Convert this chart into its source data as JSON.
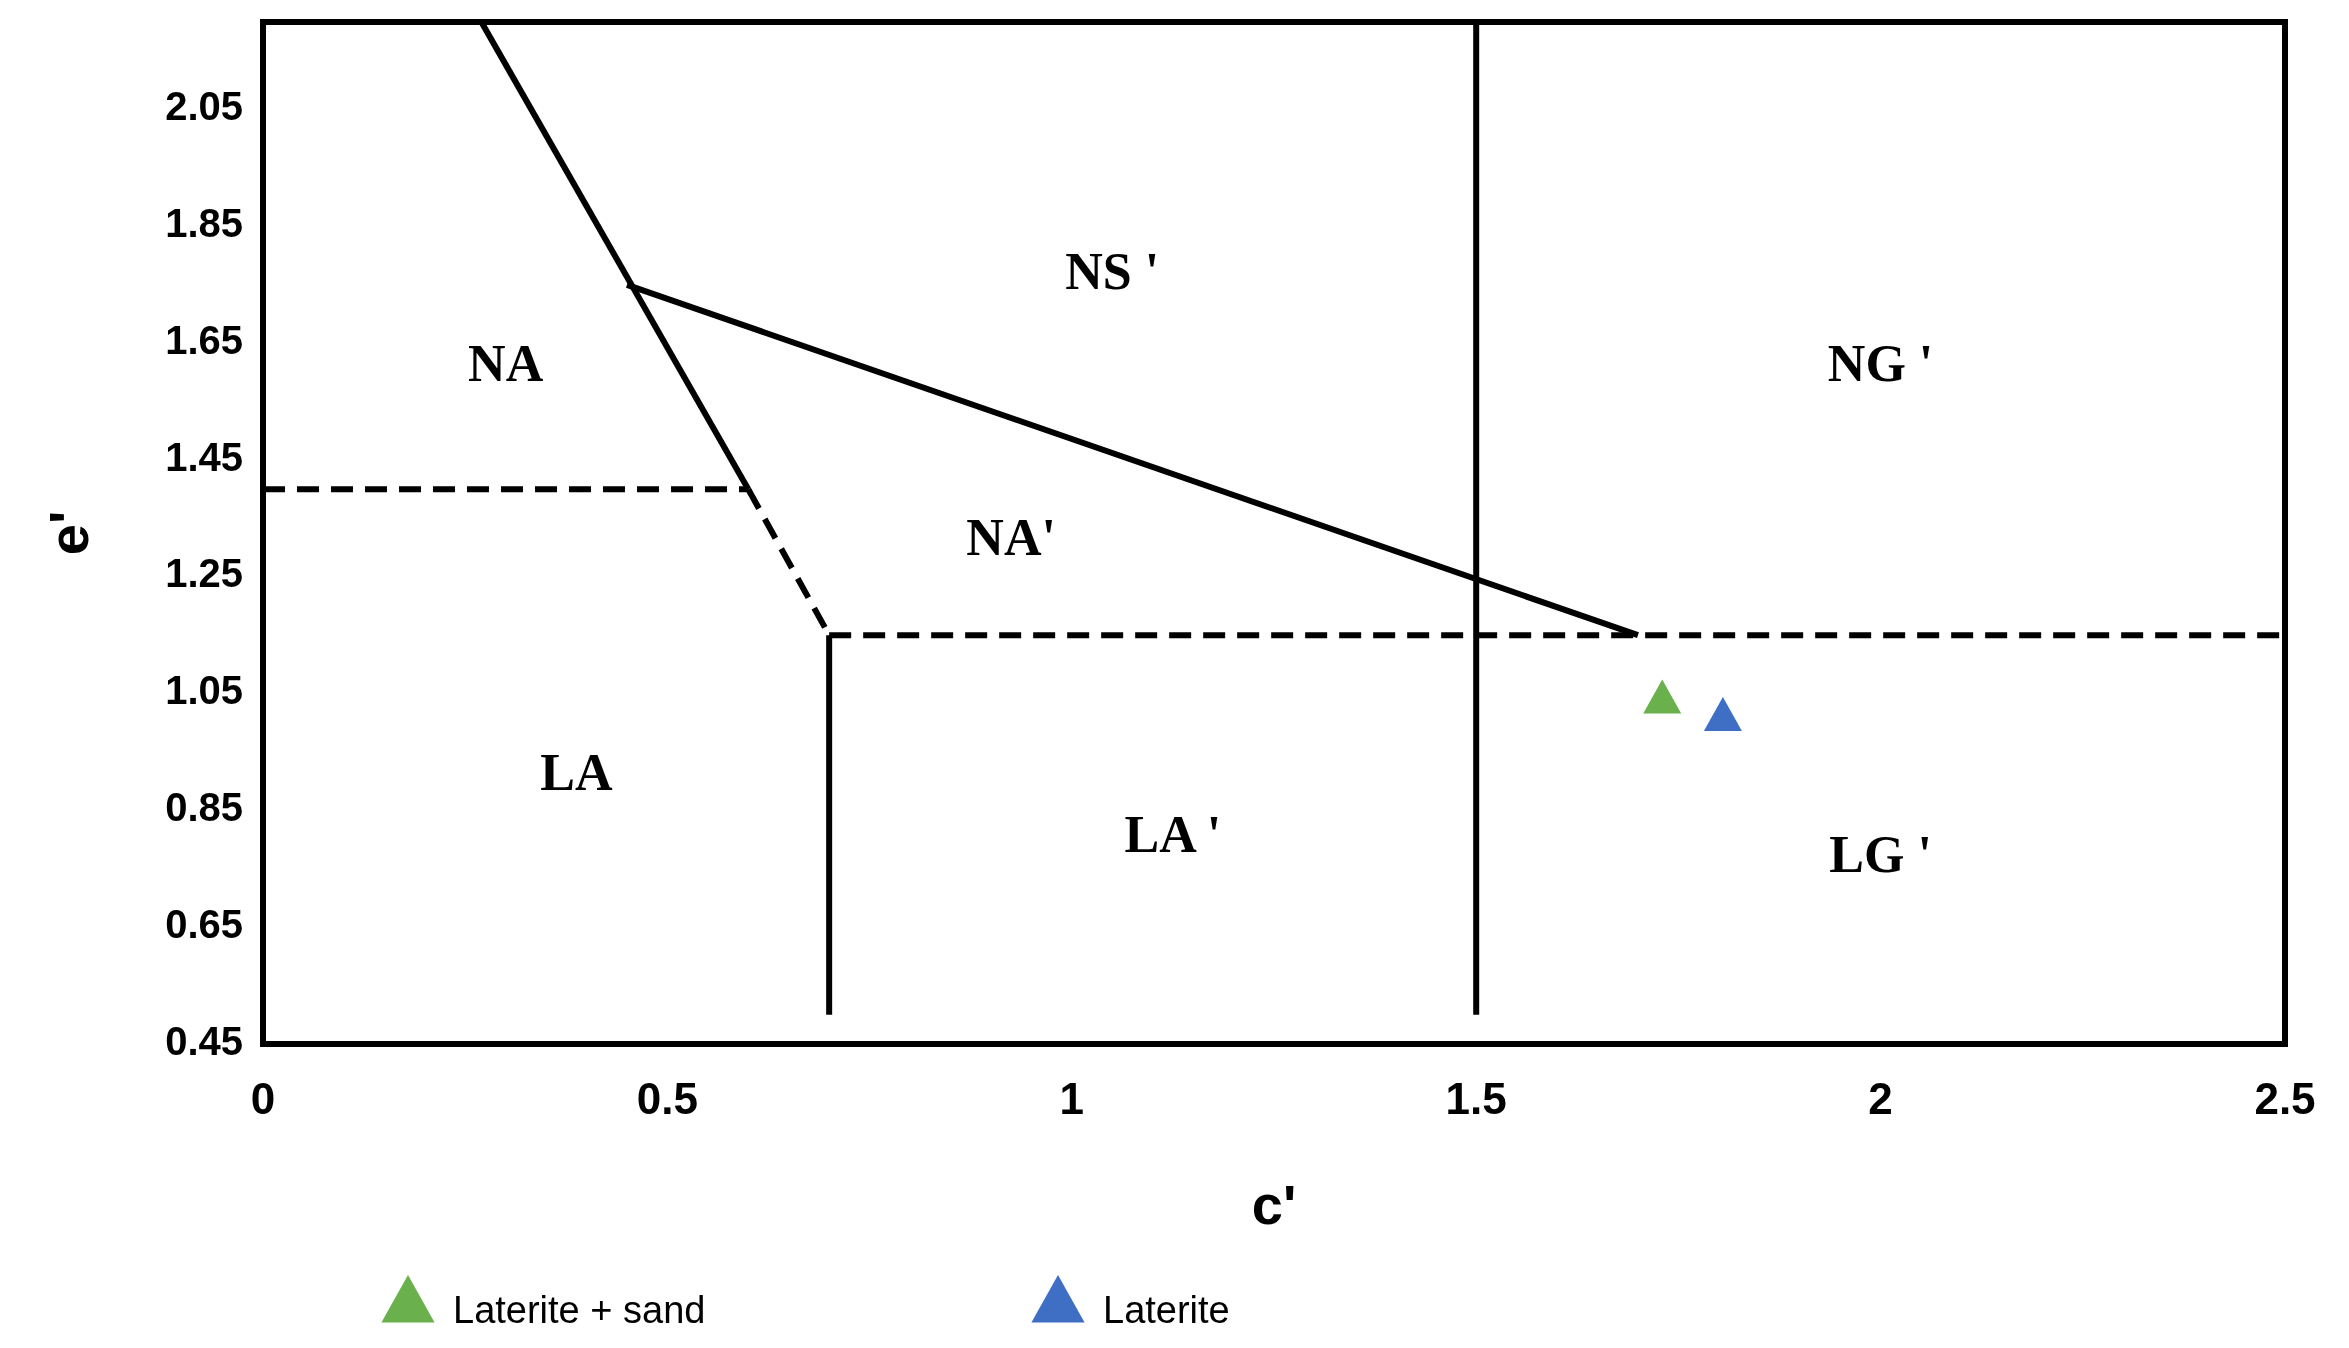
{
  "chart_data": {
    "type": "scatter",
    "xlabel": "c'",
    "ylabel": "e'",
    "xlim": [
      0,
      2.5
    ],
    "ylim": [
      0.45,
      2.2
    ],
    "xticks": [
      0,
      0.5,
      1,
      1.5,
      2,
      2.5
    ],
    "yticks": [
      0.45,
      0.65,
      0.85,
      1.05,
      1.25,
      1.45,
      1.65,
      1.85,
      2.05
    ],
    "grid": false,
    "legend": "bottom",
    "series": [
      {
        "name": "Laterite + sand",
        "color": "#6ab04c",
        "marker": "triangle",
        "x": [
          1.73
        ],
        "values": [
          1.04
        ]
      },
      {
        "name": "Laterite",
        "color": "#3f6fc4",
        "marker": "triangle",
        "x": [
          1.805
        ],
        "values": [
          1.01
        ]
      },
      {
        "type": "line",
        "color": "#000000",
        "line_style": "solid",
        "x": [
          0.27,
          0.6
        ],
        "values": [
          2.2,
          1.4
        ]
      },
      {
        "type": "line",
        "color": "#000000",
        "line_style": "dashed",
        "x": [
          0.6,
          0.7
        ],
        "values": [
          1.4,
          1.15
        ]
      },
      {
        "type": "line",
        "color": "#000000",
        "line_style": "dashed",
        "x": [
          0,
          0.6
        ],
        "values": [
          1.4,
          1.4
        ]
      },
      {
        "type": "line",
        "color": "#000000",
        "line_style": "dashed",
        "x": [
          0.7,
          2.5
        ],
        "values": [
          1.15,
          1.15
        ]
      },
      {
        "type": "line",
        "color": "#000000",
        "line_style": "solid",
        "x": [
          0.7,
          0.7
        ],
        "values": [
          1.15,
          0.5
        ]
      },
      {
        "type": "line",
        "color": "#000000",
        "line_style": "solid",
        "x": [
          1.5,
          1.5
        ],
        "values": [
          2.2,
          0.5
        ]
      },
      {
        "type": "line",
        "color": "#000000",
        "line_style": "solid",
        "x": [
          0.45,
          1.7
        ],
        "values": [
          1.75,
          1.15
        ]
      }
    ],
    "annotations": [
      "NA",
      "NS '",
      "NG '",
      "NA'",
      "LA",
      "LA '",
      "LG '"
    ]
  }
}
